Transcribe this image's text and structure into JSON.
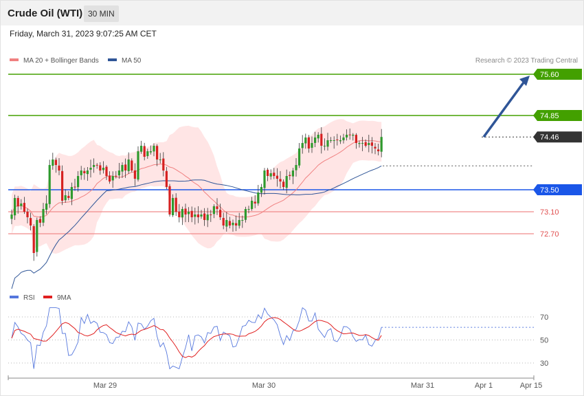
{
  "header": {
    "title": "Crude Oil (WTI)",
    "interval": "30 MIN"
  },
  "timestamp": "Friday, March 31, 2023 9:07:25 AM CET",
  "credit": "Research © 2023 Trading Central",
  "legend": [
    {
      "label": "MA 20 + Bollinger Bands",
      "color": "#f08080"
    },
    {
      "label": "MA 50",
      "color": "#2f5597"
    }
  ],
  "rsi_legend": [
    {
      "label": "RSI",
      "color": "#5577dd"
    },
    {
      "label": "9MA",
      "color": "#e02020"
    }
  ],
  "chart_data": {
    "type": "candlestick",
    "price_axis": {
      "min": 71.5,
      "max": 76.0
    },
    "x_axis_labels": [
      "Mar 29",
      "Mar 30",
      "Mar 31",
      "Apr 1",
      "Apr 15"
    ],
    "levels": [
      {
        "value": 75.6,
        "label": "75.60",
        "color": "#43a000",
        "style": "solid",
        "tag": "box"
      },
      {
        "value": 74.85,
        "label": "74.85",
        "color": "#43a000",
        "style": "solid",
        "tag": "box"
      },
      {
        "value": 74.46,
        "label": "74.46",
        "color": "#333333",
        "style": "dotted",
        "tag": "box"
      },
      {
        "value": 73.5,
        "label": "73.50",
        "color": "#1a56e8",
        "style": "solid",
        "tag": "box"
      },
      {
        "value": 73.1,
        "label": "73.10",
        "color": "#f08a8a",
        "style": "solid",
        "tag": "text"
      },
      {
        "value": 72.7,
        "label": "72.70",
        "color": "#f08a8a",
        "style": "solid",
        "tag": "text"
      }
    ],
    "closes": [
      73.05,
      73.35,
      73.2,
      73.25,
      73.1,
      73.0,
      72.85,
      72.35,
      72.95,
      72.9,
      73.15,
      73.25,
      73.95,
      74.05,
      73.95,
      73.85,
      73.3,
      73.4,
      73.35,
      73.55,
      73.55,
      73.75,
      73.85,
      73.8,
      73.85,
      73.9,
      73.95,
      73.95,
      73.85,
      73.9,
      73.75,
      73.65,
      73.75,
      73.75,
      73.85,
      73.95,
      73.85,
      74.05,
      73.85,
      73.7,
      74.2,
      74.3,
      74.1,
      74.2,
      74.2,
      74.3,
      74.05,
      74.05,
      73.85,
      73.55,
      73.05,
      73.35,
      73.1,
      73.0,
      73.15,
      73.05,
      73.1,
      73.0,
      73.05,
      73.0,
      73.05,
      72.95,
      73.05,
      73.05,
      73.2,
      73.15,
      73.0,
      72.85,
      72.95,
      72.85,
      72.9,
      72.85,
      72.95,
      72.95,
      73.15,
      73.15,
      73.3,
      73.25,
      73.45,
      73.55,
      73.85,
      73.75,
      73.8,
      73.75,
      73.7,
      73.65,
      73.55,
      73.75,
      73.75,
      73.85,
      73.95,
      74.25,
      74.35,
      74.45,
      74.25,
      74.35,
      74.45,
      74.5,
      74.3,
      74.3,
      74.4,
      74.4,
      74.4,
      74.4,
      74.4,
      74.45,
      74.5,
      74.5,
      74.5,
      74.35,
      74.35,
      74.35,
      74.3,
      74.35,
      74.3,
      74.25,
      74.2,
      74.46
    ],
    "rsi_axis": {
      "min": 20,
      "max": 80,
      "ticks": [
        70,
        50,
        30
      ]
    },
    "rsi_last": 61,
    "rsi_ma_last": 54
  }
}
